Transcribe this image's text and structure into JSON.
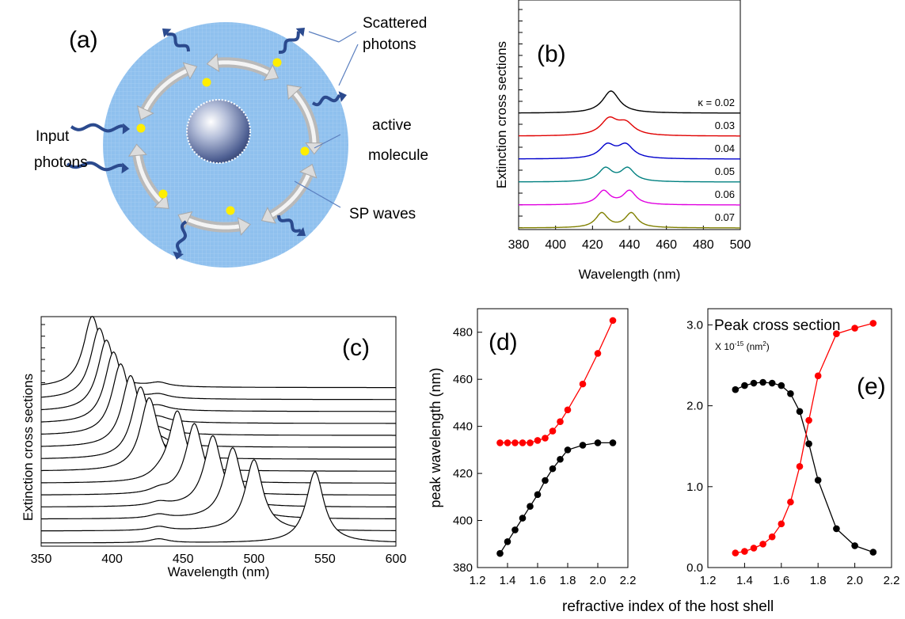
{
  "common_xlabel": "refractive index of the  host shell",
  "panel_a": {
    "label": "(a)",
    "scattered": [
      "Scattered",
      "photons"
    ],
    "input": [
      "Input",
      "photons"
    ],
    "active": [
      "active",
      "molecule"
    ],
    "sp": "SP waves",
    "colors": {
      "shell": "#8fc0ee",
      "arrow": "#b9b9b9",
      "molecule": "#ffee00",
      "photon": "#2b4a8e"
    }
  },
  "chart_data": [
    {
      "panel": "(b)",
      "type": "line",
      "xlabel": "Wavelength  (nm)",
      "ylabel": "Extinction cross sections",
      "xlim": [
        380,
        500
      ],
      "xticks": [
        380,
        400,
        420,
        440,
        460,
        480,
        500
      ],
      "y_tick_labels": false,
      "legend_prefix": "κ = ",
      "series": [
        {
          "name": "0.02",
          "offset": 5,
          "p1": [
            430,
            5.0,
            5.5
          ],
          "p2": [
            438,
            0,
            6.5
          ],
          "color": "#000000"
        },
        {
          "name": "0.03",
          "offset": 4,
          "p1": [
            429,
            3.6,
            5.5
          ],
          "p2": [
            438,
            2.6,
            5.5
          ],
          "color": "#e00000"
        },
        {
          "name": "0.04",
          "offset": 3,
          "p1": [
            428,
            3.0,
            5.0
          ],
          "p2": [
            438,
            3.0,
            5.0
          ],
          "color": "#0000cc"
        },
        {
          "name": "0.05",
          "offset": 2,
          "p1": [
            427,
            3.0,
            4.5
          ],
          "p2": [
            439,
            3.0,
            4.5
          ],
          "color": "#008080"
        },
        {
          "name": "0.06",
          "offset": 1,
          "p1": [
            426,
            3.1,
            4.2
          ],
          "p2": [
            440,
            3.1,
            4.2
          ],
          "color": "#e000e0"
        },
        {
          "name": "0.07",
          "offset": 0,
          "p1": [
            425,
            3.3,
            4.0
          ],
          "p2": [
            441,
            3.3,
            4.0
          ],
          "color": "#808000"
        }
      ]
    },
    {
      "panel": "(c)",
      "type": "line",
      "xlabel": "Wavelength  (nm)",
      "ylabel": "Extinction cross sections",
      "xlim": [
        350,
        600
      ],
      "xticks": [
        350,
        400,
        450,
        500,
        550,
        600
      ],
      "y_tick_labels": false,
      "side_peak": 433,
      "series": [
        {
          "peak": 543,
          "offset": 0
        },
        {
          "peak": 500,
          "offset": 1
        },
        {
          "peak": 485,
          "offset": 2
        },
        {
          "peak": 471,
          "offset": 3
        },
        {
          "peak": 458,
          "offset": 4
        },
        {
          "peak": 446,
          "offset": 5
        },
        {
          "peak": 426,
          "offset": 6
        },
        {
          "peak": 420,
          "offset": 7
        },
        {
          "peak": 413,
          "offset": 8
        },
        {
          "peak": 406,
          "offset": 9
        },
        {
          "peak": 401,
          "offset": 10
        },
        {
          "peak": 396,
          "offset": 11
        },
        {
          "peak": 391,
          "offset": 12
        },
        {
          "peak": 386,
          "offset": 13
        }
      ]
    },
    {
      "panel": "(d)",
      "type": "scatter",
      "ylabel": "peak wavelength  (nm)",
      "xlim": [
        1.2,
        2.2
      ],
      "ylim": [
        380,
        490
      ],
      "xticks": [
        "1.2",
        "1.4",
        "1.6",
        "1.8",
        "2.0",
        "2.2"
      ],
      "yticks": [
        "380",
        "400",
        "420",
        "440",
        "460",
        "480"
      ],
      "x": [
        1.35,
        1.4,
        1.45,
        1.5,
        1.55,
        1.6,
        1.65,
        1.7,
        1.75,
        1.8,
        1.9,
        2.0,
        2.1
      ],
      "series": [
        {
          "values": [
            386,
            391,
            396,
            401,
            406,
            411,
            417,
            422,
            426,
            430,
            432,
            433,
            433
          ],
          "color": "#000000"
        },
        {
          "values": [
            433,
            433,
            433,
            433,
            433,
            434,
            435,
            438,
            442,
            447,
            458,
            471,
            485
          ],
          "color": "#ff0000"
        }
      ]
    },
    {
      "panel": "(e)",
      "type": "scatter",
      "title": "Peak cross section",
      "unit_prefix": "X 10",
      "unit_exp": "-15",
      "unit_mid": "  (nm",
      "unit_exp2": "2",
      "unit_end": ")",
      "xlim": [
        1.2,
        2.2
      ],
      "ylim": [
        0,
        3.2
      ],
      "xticks": [
        "1.2",
        "1.4",
        "1.6",
        "1.8",
        "2.0",
        "2.2"
      ],
      "yticks": [
        "0.0",
        "1.0",
        "2.0",
        "3.0"
      ],
      "x": [
        1.35,
        1.4,
        1.45,
        1.5,
        1.55,
        1.6,
        1.65,
        1.7,
        1.75,
        1.8,
        1.9,
        2.0,
        2.1
      ],
      "series": [
        {
          "values": [
            2.2,
            2.25,
            2.28,
            2.29,
            2.28,
            2.25,
            2.15,
            1.93,
            1.53,
            1.08,
            0.48,
            0.27,
            0.19
          ],
          "color": "#000000"
        },
        {
          "values": [
            0.18,
            0.2,
            0.24,
            0.29,
            0.38,
            0.54,
            0.81,
            1.25,
            1.82,
            2.37,
            2.89,
            2.96,
            3.02
          ],
          "color": "#ff0000"
        }
      ]
    }
  ]
}
